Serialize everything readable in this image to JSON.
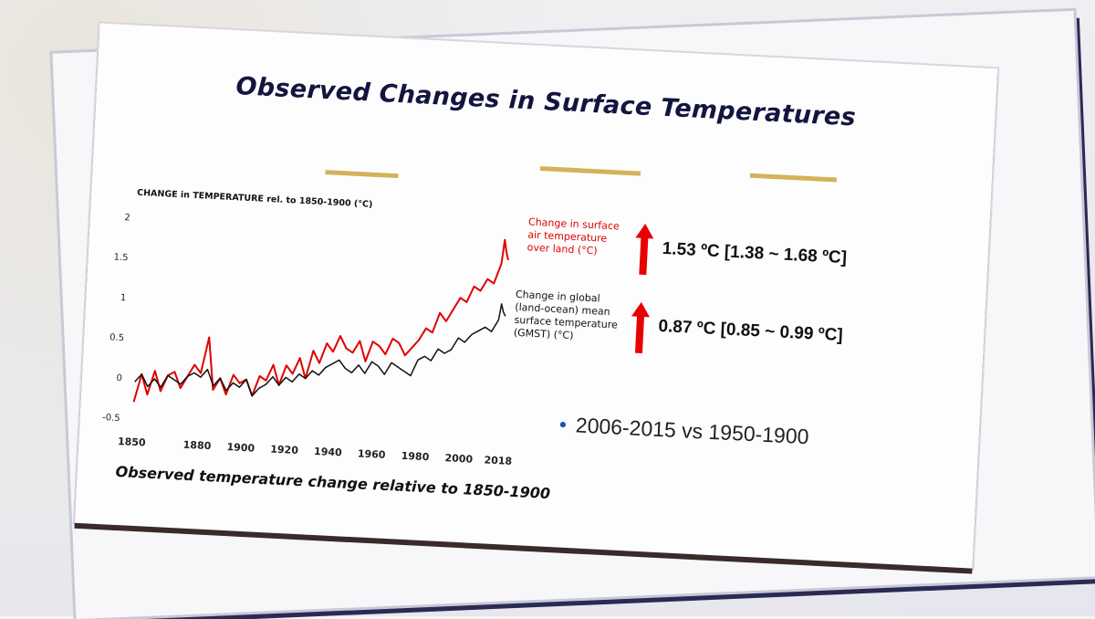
{
  "slide": {
    "title": "Observed Changes in Surface Temperatures",
    "caption": "Observed temperature change relative to 1850-1900",
    "bullet": "2006-2015 vs 1950-1900"
  },
  "annotations": {
    "land_value": "1.53 ºC [1.38 ~ 1.68 ºC]",
    "global_value": "0.87 ºC [0.85 ~ 0.99 ºC]"
  },
  "chart_data": {
    "type": "line",
    "ylabel": "CHANGE in TEMPERATURE rel. to 1850-1900 (°C)",
    "xlabel": "",
    "xlim": [
      1850,
      2018
    ],
    "ylim": [
      -0.5,
      2
    ],
    "x_ticks": [
      "1850",
      "1880",
      "1900",
      "1920",
      "1940",
      "1960",
      "1980",
      "2000",
      "2018"
    ],
    "y_ticks": [
      "2",
      "1.5",
      "1",
      "0.5",
      "0",
      "-0.5"
    ],
    "series": [
      {
        "name": "Change in surface air temperature over land (°C)",
        "color": "#e00000",
        "x": [
          1850,
          1853,
          1856,
          1859,
          1862,
          1865,
          1868,
          1871,
          1874,
          1877,
          1880,
          1883,
          1886,
          1889,
          1892,
          1895,
          1898,
          1901,
          1904,
          1907,
          1910,
          1913,
          1916,
          1919,
          1922,
          1925,
          1928,
          1931,
          1934,
          1937,
          1940,
          1943,
          1946,
          1949,
          1952,
          1955,
          1958,
          1961,
          1964,
          1967,
          1970,
          1973,
          1976,
          1979,
          1982,
          1985,
          1988,
          1991,
          1994,
          1997,
          2000,
          2003,
          2006,
          2009,
          2012,
          2015,
          2016,
          2017,
          2018
        ],
        "y": [
          -0.3,
          0.05,
          -0.2,
          0.1,
          -0.15,
          0.05,
          0.1,
          -0.1,
          0.05,
          0.2,
          0.1,
          0.55,
          -0.1,
          0.05,
          -0.15,
          0.1,
          0.0,
          0.05,
          -0.15,
          0.1,
          0.05,
          0.25,
          0.0,
          0.25,
          0.15,
          0.35,
          0.1,
          0.45,
          0.3,
          0.55,
          0.45,
          0.65,
          0.5,
          0.45,
          0.6,
          0.35,
          0.6,
          0.55,
          0.45,
          0.65,
          0.6,
          0.45,
          0.55,
          0.65,
          0.8,
          0.75,
          1.0,
          0.9,
          1.05,
          1.2,
          1.15,
          1.35,
          1.3,
          1.45,
          1.4,
          1.65,
          1.95,
          1.8,
          1.7
        ]
      },
      {
        "name": "Change in global (land-ocean) mean surface temperature (GMST) (°C)",
        "color": "#111111",
        "x": [
          1850,
          1853,
          1856,
          1859,
          1862,
          1865,
          1868,
          1871,
          1874,
          1877,
          1880,
          1883,
          1886,
          1889,
          1892,
          1895,
          1898,
          1901,
          1904,
          1907,
          1910,
          1913,
          1916,
          1919,
          1922,
          1925,
          1928,
          1931,
          1934,
          1937,
          1940,
          1943,
          1946,
          1949,
          1952,
          1955,
          1958,
          1961,
          1964,
          1967,
          1970,
          1973,
          1976,
          1979,
          1982,
          1985,
          1988,
          1991,
          1994,
          1997,
          2000,
          2003,
          2006,
          2009,
          2012,
          2015,
          2016,
          2017,
          2018
        ],
        "y": [
          -0.05,
          0.05,
          -0.1,
          0.0,
          -0.1,
          0.05,
          0.0,
          -0.05,
          0.05,
          0.1,
          0.05,
          0.15,
          -0.05,
          0.05,
          -0.1,
          0.0,
          -0.05,
          0.05,
          -0.15,
          -0.05,
          0.0,
          0.1,
          0.0,
          0.1,
          0.05,
          0.15,
          0.1,
          0.2,
          0.15,
          0.25,
          0.3,
          0.35,
          0.25,
          0.2,
          0.3,
          0.2,
          0.35,
          0.3,
          0.2,
          0.35,
          0.3,
          0.25,
          0.2,
          0.4,
          0.45,
          0.4,
          0.55,
          0.5,
          0.55,
          0.7,
          0.65,
          0.75,
          0.8,
          0.85,
          0.8,
          0.95,
          1.15,
          1.05,
          1.0
        ]
      }
    ],
    "legend": [
      "Change in surface air temperature over land (°C)",
      "Change in global (land-ocean) mean surface temperature (GMST) (°C)"
    ]
  }
}
